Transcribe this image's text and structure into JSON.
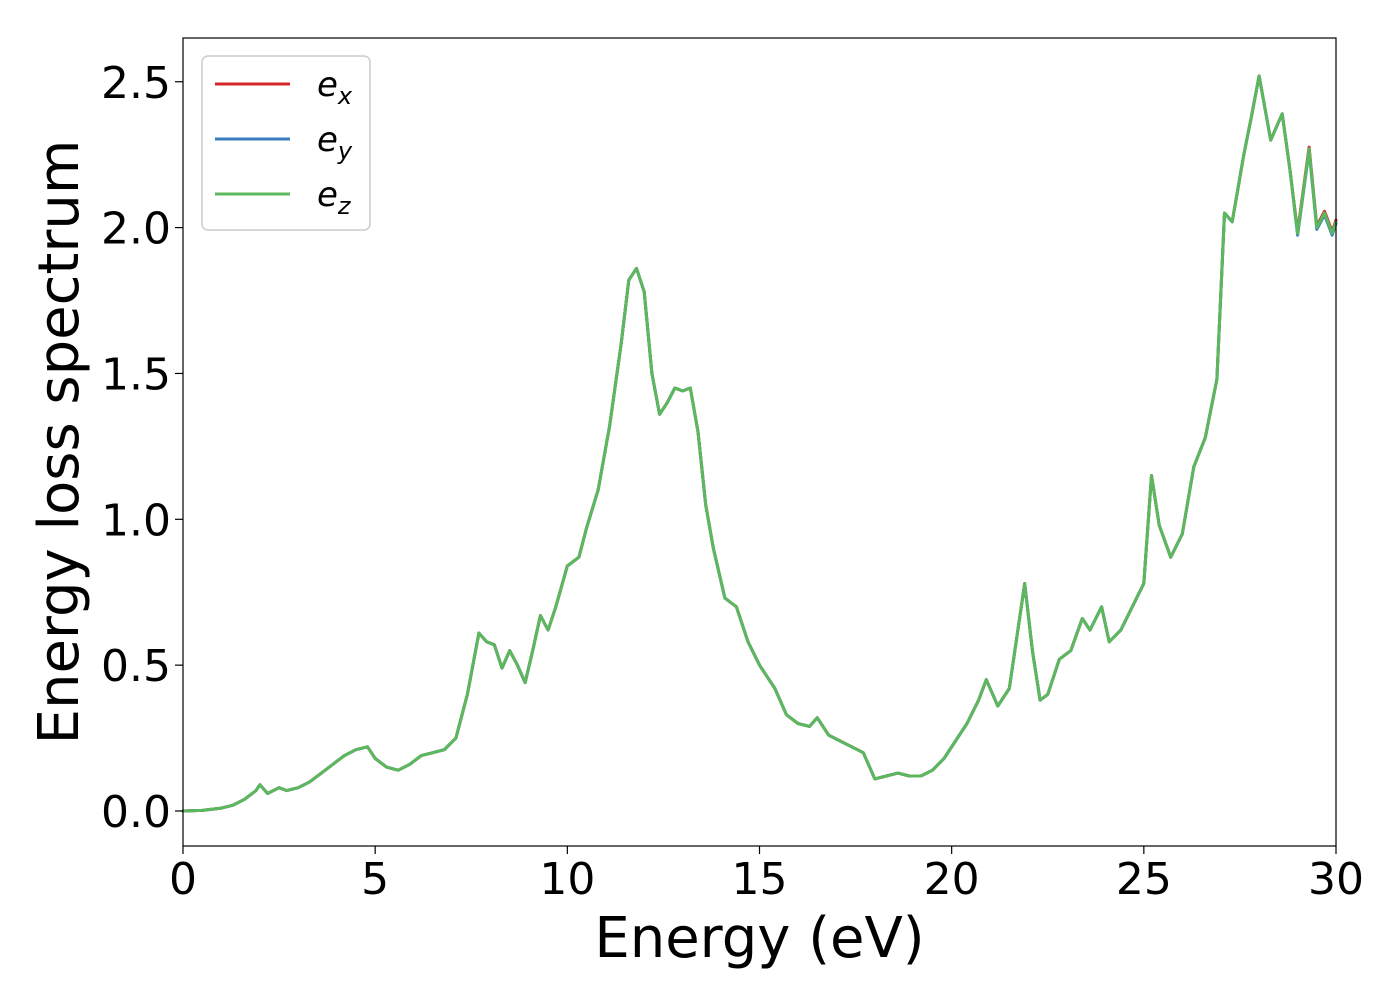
{
  "chart_data": {
    "type": "line",
    "xlabel": "Energy (eV)",
    "ylabel": "Energy loss spectrum",
    "xlim": [
      0,
      30
    ],
    "ylim": [
      -0.12,
      2.65
    ],
    "xticks": [
      0,
      5,
      10,
      15,
      20,
      25,
      30
    ],
    "xtick_labels": [
      "0",
      "5",
      "10",
      "15",
      "20",
      "25",
      "30"
    ],
    "yticks": [
      0.0,
      0.5,
      1.0,
      1.5,
      2.0,
      2.5
    ],
    "ytick_labels": [
      "0.0",
      "0.5",
      "1.0",
      "1.5",
      "2.0",
      "2.5"
    ],
    "grid": false,
    "legend_position": "top-left",
    "series": [
      {
        "name": "e",
        "subscript": "x",
        "color": "#d62728"
      },
      {
        "name": "e",
        "subscript": "y",
        "color": "#3a7dbf"
      },
      {
        "name": "e",
        "subscript": "z",
        "color": "#5cb85c"
      }
    ],
    "x": [
      0,
      0.5,
      1.0,
      1.3,
      1.6,
      1.9,
      2.0,
      2.2,
      2.5,
      2.7,
      3.0,
      3.3,
      3.6,
      3.9,
      4.2,
      4.5,
      4.8,
      5.0,
      5.3,
      5.6,
      5.9,
      6.2,
      6.5,
      6.8,
      7.1,
      7.4,
      7.7,
      7.9,
      8.1,
      8.3,
      8.5,
      8.7,
      8.9,
      9.1,
      9.3,
      9.5,
      9.7,
      10.0,
      10.3,
      10.5,
      10.8,
      11.1,
      11.4,
      11.6,
      11.8,
      12.0,
      12.2,
      12.4,
      12.6,
      12.8,
      13.0,
      13.2,
      13.4,
      13.6,
      13.8,
      14.1,
      14.4,
      14.7,
      15.0,
      15.2,
      15.4,
      15.7,
      16.0,
      16.3,
      16.5,
      16.8,
      17.1,
      17.4,
      17.7,
      18.0,
      18.3,
      18.6,
      18.9,
      19.2,
      19.5,
      19.8,
      20.1,
      20.4,
      20.7,
      20.9,
      21.2,
      21.5,
      21.7,
      21.9,
      22.1,
      22.3,
      22.5,
      22.8,
      23.1,
      23.4,
      23.6,
      23.9,
      24.1,
      24.4,
      24.7,
      25.0,
      25.2,
      25.4,
      25.7,
      26.0,
      26.3,
      26.6,
      26.9,
      27.1,
      27.3,
      27.6,
      27.8,
      28.0,
      28.3,
      28.6,
      28.8,
      29.0,
      29.3,
      29.5,
      29.7,
      29.9,
      30.0
    ],
    "y": [
      0.0,
      0.002,
      0.01,
      0.02,
      0.04,
      0.07,
      0.09,
      0.06,
      0.08,
      0.07,
      0.08,
      0.1,
      0.13,
      0.16,
      0.19,
      0.21,
      0.22,
      0.18,
      0.15,
      0.14,
      0.16,
      0.19,
      0.2,
      0.21,
      0.25,
      0.4,
      0.61,
      0.58,
      0.57,
      0.49,
      0.55,
      0.5,
      0.44,
      0.55,
      0.67,
      0.62,
      0.7,
      0.84,
      0.87,
      0.97,
      1.1,
      1.32,
      1.6,
      1.82,
      1.86,
      1.78,
      1.5,
      1.36,
      1.4,
      1.45,
      1.44,
      1.45,
      1.3,
      1.05,
      0.9,
      0.73,
      0.7,
      0.58,
      0.5,
      0.46,
      0.42,
      0.33,
      0.3,
      0.29,
      0.32,
      0.26,
      0.24,
      0.22,
      0.2,
      0.11,
      0.12,
      0.13,
      0.12,
      0.12,
      0.14,
      0.18,
      0.24,
      0.3,
      0.38,
      0.45,
      0.36,
      0.42,
      0.6,
      0.78,
      0.55,
      0.38,
      0.4,
      0.52,
      0.55,
      0.66,
      0.62,
      0.7,
      0.58,
      0.62,
      0.7,
      0.78,
      1.15,
      0.98,
      0.87,
      0.95,
      1.18,
      1.28,
      1.48,
      2.05,
      2.02,
      2.25,
      2.38,
      2.52,
      2.3,
      2.39,
      2.2,
      1.98,
      2.27,
      2.0,
      2.05,
      1.98,
      2.02
    ]
  }
}
